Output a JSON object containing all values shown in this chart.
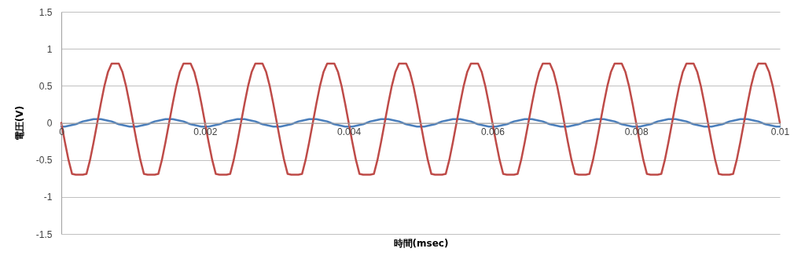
{
  "chart_data": {
    "type": "line",
    "xlabel": "時間(msec)",
    "ylabel": "電圧(V)",
    "x": [
      0,
      5e-05,
      0.0001,
      0.00015,
      0.0002,
      0.00025,
      0.0003,
      0.00035,
      0.0004,
      0.00045,
      0.0005,
      0.00055,
      0.0006,
      0.00065,
      0.0007,
      0.00075,
      0.0008,
      0.00085,
      0.0009,
      0.00095,
      0.001,
      0.00105,
      0.0011,
      0.00115,
      0.0012,
      0.00125,
      0.0013,
      0.00135,
      0.0014,
      0.00145,
      0.0015,
      0.00155,
      0.0016,
      0.00165,
      0.0017,
      0.00175,
      0.0018,
      0.00185,
      0.0019,
      0.00195,
      0.002,
      0.00205,
      0.0021,
      0.00215,
      0.0022,
      0.00225,
      0.0023,
      0.00235,
      0.0024,
      0.00245,
      0.0025,
      0.00255,
      0.0026,
      0.00265,
      0.0027,
      0.00275,
      0.0028,
      0.00285,
      0.0029,
      0.00295,
      0.003,
      0.00305,
      0.0031,
      0.00315,
      0.0032,
      0.00325,
      0.0033,
      0.00335,
      0.0034,
      0.00345,
      0.0035,
      0.00355,
      0.0036,
      0.00365,
      0.0037,
      0.00375,
      0.0038,
      0.00385,
      0.0039,
      0.00395,
      0.004,
      0.00405,
      0.0041,
      0.00415,
      0.0042,
      0.00425,
      0.0043,
      0.00435,
      0.0044,
      0.00445,
      0.0045,
      0.00455,
      0.0046,
      0.00465,
      0.0047,
      0.00475,
      0.0048,
      0.00485,
      0.0049,
      0.00495,
      0.005,
      0.00505,
      0.0051,
      0.00515,
      0.0052,
      0.00525,
      0.0053,
      0.00535,
      0.0054,
      0.00545,
      0.0055,
      0.00555,
      0.0056,
      0.00565,
      0.0057,
      0.00575,
      0.0058,
      0.00585,
      0.0059,
      0.00595,
      0.006,
      0.00605,
      0.0061,
      0.00615,
      0.0062,
      0.00625,
      0.0063,
      0.00635,
      0.0064,
      0.00645,
      0.0065,
      0.00655,
      0.0066,
      0.00665,
      0.0067,
      0.00675,
      0.0068,
      0.00685,
      0.0069,
      0.00695,
      0.007,
      0.00705,
      0.0071,
      0.00715,
      0.0072,
      0.00725,
      0.0073,
      0.00735,
      0.0074,
      0.00745,
      0.0075,
      0.00755,
      0.0076,
      0.00765,
      0.0077,
      0.00775,
      0.0078,
      0.00785,
      0.0079,
      0.00795,
      0.008,
      0.00805,
      0.0081,
      0.00815,
      0.0082,
      0.00825,
      0.0083,
      0.00835,
      0.0084,
      0.00845,
      0.0085,
      0.00855,
      0.0086,
      0.00865,
      0.0087,
      0.00875,
      0.0088,
      0.00885,
      0.0089,
      0.00895,
      0.009,
      0.00905,
      0.0091,
      0.00915,
      0.0092,
      0.00925,
      0.0093,
      0.00935,
      0.0094,
      0.00945,
      0.0095,
      0.00955,
      0.0096,
      0.00965,
      0.0097,
      0.00975,
      0.0098,
      0.00985,
      0.0099,
      0.00995,
      0.01
    ],
    "series": [
      {
        "color": "#4a7ebb",
        "values": [
          -0.05,
          -0.05,
          -0.04,
          -0.03,
          -0.02,
          0,
          0.02,
          0.03,
          0.04,
          0.05,
          0.05,
          0.05,
          0.04,
          0.03,
          0.02,
          0,
          -0.02,
          -0.03,
          -0.04,
          -0.05,
          -0.05,
          -0.05,
          -0.04,
          -0.03,
          -0.02,
          0,
          0.02,
          0.03,
          0.04,
          0.05,
          0.05,
          0.05,
          0.04,
          0.03,
          0.02,
          0,
          -0.02,
          -0.03,
          -0.04,
          -0.05,
          -0.05,
          -0.05,
          -0.04,
          -0.03,
          -0.02,
          0,
          0.02,
          0.03,
          0.04,
          0.05,
          0.05,
          0.05,
          0.04,
          0.03,
          0.02,
          0,
          -0.02,
          -0.03,
          -0.04,
          -0.05,
          -0.05,
          -0.05,
          -0.04,
          -0.03,
          -0.02,
          0,
          0.02,
          0.03,
          0.04,
          0.05,
          0.05,
          0.05,
          0.04,
          0.03,
          0.02,
          0,
          -0.02,
          -0.03,
          -0.04,
          -0.05,
          -0.05,
          -0.05,
          -0.04,
          -0.03,
          -0.02,
          0,
          0.02,
          0.03,
          0.04,
          0.05,
          0.05,
          0.05,
          0.04,
          0.03,
          0.02,
          0,
          -0.02,
          -0.03,
          -0.04,
          -0.05,
          -0.05,
          -0.05,
          -0.04,
          -0.03,
          -0.02,
          0,
          0.02,
          0.03,
          0.04,
          0.05,
          0.05,
          0.05,
          0.04,
          0.03,
          0.02,
          0,
          -0.02,
          -0.03,
          -0.04,
          -0.05,
          -0.05,
          -0.05,
          -0.04,
          -0.03,
          -0.02,
          0,
          0.02,
          0.03,
          0.04,
          0.05,
          0.05,
          0.05,
          0.04,
          0.03,
          0.02,
          0,
          -0.02,
          -0.03,
          -0.04,
          -0.05,
          -0.05,
          -0.05,
          -0.04,
          -0.03,
          -0.02,
          0,
          0.02,
          0.03,
          0.04,
          0.05,
          0.05,
          0.05,
          0.04,
          0.03,
          0.02,
          0,
          -0.02,
          -0.03,
          -0.04,
          -0.05,
          -0.05,
          -0.05,
          -0.04,
          -0.03,
          -0.02,
          0,
          0.02,
          0.03,
          0.04,
          0.05,
          0.05,
          0.05,
          0.04,
          0.03,
          0.02,
          0,
          -0.02,
          -0.03,
          -0.04,
          -0.05,
          -0.05,
          -0.05,
          -0.04,
          -0.03,
          -0.02,
          0,
          0.02,
          0.03,
          0.04,
          0.05,
          0.05,
          0.05,
          0.04,
          0.03,
          0.02,
          0,
          -0.02,
          -0.03,
          -0.04,
          -0.05,
          -0.05
        ]
      },
      {
        "color": "#be4b48",
        "values": [
          0,
          -0.26,
          -0.5,
          -0.69,
          -0.7,
          -0.7,
          -0.7,
          -0.69,
          -0.5,
          -0.26,
          0,
          0.26,
          0.5,
          0.69,
          0.8,
          0.8,
          0.8,
          0.69,
          0.5,
          0.26,
          0,
          -0.26,
          -0.5,
          -0.69,
          -0.7,
          -0.7,
          -0.7,
          -0.69,
          -0.5,
          -0.26,
          0,
          0.26,
          0.5,
          0.69,
          0.8,
          0.8,
          0.8,
          0.69,
          0.5,
          0.26,
          0,
          -0.26,
          -0.5,
          -0.69,
          -0.7,
          -0.7,
          -0.7,
          -0.69,
          -0.5,
          -0.26,
          0,
          0.26,
          0.5,
          0.69,
          0.8,
          0.8,
          0.8,
          0.69,
          0.5,
          0.26,
          0,
          -0.26,
          -0.5,
          -0.69,
          -0.7,
          -0.7,
          -0.7,
          -0.69,
          -0.5,
          -0.26,
          0,
          0.26,
          0.5,
          0.69,
          0.8,
          0.8,
          0.8,
          0.69,
          0.5,
          0.26,
          0,
          -0.26,
          -0.5,
          -0.69,
          -0.7,
          -0.7,
          -0.7,
          -0.69,
          -0.5,
          -0.26,
          0,
          0.26,
          0.5,
          0.69,
          0.8,
          0.8,
          0.8,
          0.69,
          0.5,
          0.26,
          0,
          -0.26,
          -0.5,
          -0.69,
          -0.7,
          -0.7,
          -0.7,
          -0.69,
          -0.5,
          -0.26,
          0,
          0.26,
          0.5,
          0.69,
          0.8,
          0.8,
          0.8,
          0.69,
          0.5,
          0.26,
          0,
          -0.26,
          -0.5,
          -0.69,
          -0.7,
          -0.7,
          -0.7,
          -0.69,
          -0.5,
          -0.26,
          0,
          0.26,
          0.5,
          0.69,
          0.8,
          0.8,
          0.8,
          0.69,
          0.5,
          0.26,
          0,
          -0.26,
          -0.5,
          -0.69,
          -0.7,
          -0.7,
          -0.7,
          -0.69,
          -0.5,
          -0.26,
          0,
          0.26,
          0.5,
          0.69,
          0.8,
          0.8,
          0.8,
          0.69,
          0.5,
          0.26,
          0,
          -0.26,
          -0.5,
          -0.69,
          -0.7,
          -0.7,
          -0.7,
          -0.69,
          -0.5,
          -0.26,
          0,
          0.26,
          0.5,
          0.69,
          0.8,
          0.8,
          0.8,
          0.69,
          0.5,
          0.26,
          0,
          -0.26,
          -0.5,
          -0.69,
          -0.7,
          -0.7,
          -0.7,
          -0.69,
          -0.5,
          -0.26,
          0,
          0.26,
          0.5,
          0.69,
          0.8,
          0.8,
          0.8,
          0.69,
          0.5,
          0.26,
          0
        ]
      }
    ],
    "xlim": [
      0,
      0.01
    ],
    "xticks": [
      0,
      0.002,
      0.004,
      0.006,
      0.008,
      0.01
    ],
    "ylim": [
      -1.5,
      1.5
    ],
    "yticks": [
      -1.5,
      -1,
      -0.5,
      0,
      0.5,
      1,
      1.5
    ],
    "grid": "y",
    "marker": "none",
    "line_style": "solid"
  }
}
